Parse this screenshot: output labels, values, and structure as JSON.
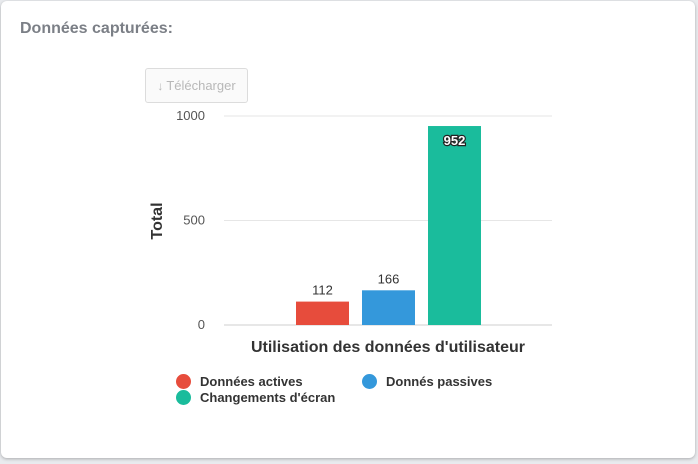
{
  "card": {
    "title": "Données capturées:"
  },
  "toolbar": {
    "download_label": "Télécharger",
    "download_icon": "↓"
  },
  "colors": {
    "active": "#e74c3c",
    "passive": "#3498db",
    "screen": "#1abc9c"
  },
  "chart_data": {
    "type": "bar",
    "xlabel": "Utilisation des données d'utilisateur",
    "ylabel": "Total",
    "ylim": [
      0,
      1000
    ],
    "yticks": [
      0,
      500,
      1000
    ],
    "grid": true,
    "legend_position": "bottom",
    "series": [
      {
        "name": "Données actives",
        "value": 112,
        "color": "#e74c3c"
      },
      {
        "name": "Donnés passives",
        "value": 166,
        "color": "#3498db"
      },
      {
        "name": "Changements d'écran",
        "value": 952,
        "color": "#1abc9c"
      }
    ]
  }
}
